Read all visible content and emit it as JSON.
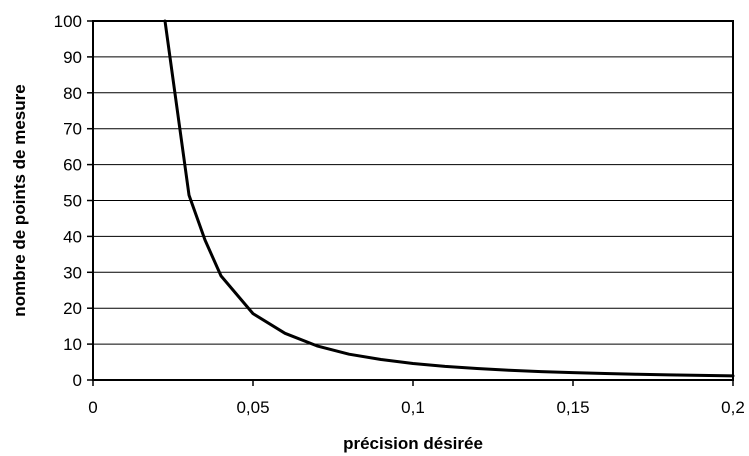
{
  "chart_data": {
    "type": "line",
    "title": "",
    "xlabel": "précision désirée",
    "ylabel": "nombre de points de mesure",
    "xlim": [
      0,
      0.2
    ],
    "ylim": [
      0,
      100
    ],
    "x_ticks": [
      0,
      0.05,
      0.1,
      0.15,
      0.2
    ],
    "x_tick_labels": [
      "0",
      "0,05",
      "0,1",
      "0,15",
      "0,2"
    ],
    "y_ticks": [
      0,
      10,
      20,
      30,
      40,
      50,
      60,
      70,
      80,
      90,
      100
    ],
    "y_tick_labels": [
      "0",
      "10",
      "20",
      "30",
      "40",
      "50",
      "60",
      "70",
      "80",
      "90",
      "100"
    ],
    "grid": "horizontal",
    "legend": "none",
    "line_color": "#000000",
    "series": [
      {
        "x": [
          0.0225,
          0.03,
          0.035,
          0.04,
          0.05,
          0.06,
          0.07,
          0.08,
          0.09,
          0.1,
          0.11,
          0.12,
          0.13,
          0.14,
          0.15,
          0.16,
          0.17,
          0.18,
          0.19,
          0.2
        ],
        "y": [
          100,
          51.5,
          39,
          29,
          18.5,
          13,
          9.5,
          7.2,
          5.7,
          4.6,
          3.8,
          3.2,
          2.7,
          2.35,
          2.05,
          1.8,
          1.6,
          1.42,
          1.28,
          1.15
        ]
      }
    ]
  }
}
